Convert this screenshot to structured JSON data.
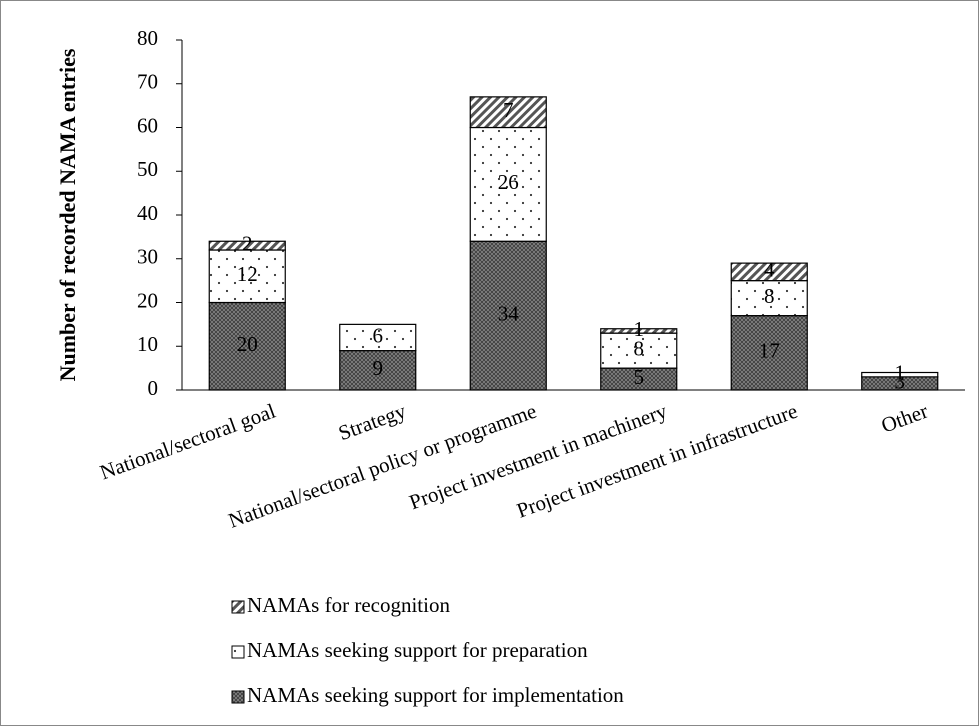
{
  "chart_data": {
    "type": "stacked_bar",
    "ylabel": "Number of recorded NAMA entries",
    "categories": [
      "National/sectoral goal",
      "Strategy",
      "National/sectoral policy or programme",
      "Project investment in machinery",
      "Project investment in infrastructure",
      "Other"
    ],
    "series": [
      {
        "name": "NAMAs seeking support for implementation",
        "color": "#8c8c8c",
        "values": [
          20,
          9,
          34,
          5,
          17,
          3
        ]
      },
      {
        "name": "NAMAs seeking support for preparation",
        "color": "#ffffff",
        "values": [
          12,
          6,
          26,
          8,
          8,
          1
        ]
      },
      {
        "name": "NAMAs for recognition",
        "color": "#ffffff",
        "values": [
          2,
          null,
          7,
          1,
          4,
          null
        ]
      }
    ],
    "ylim": [
      0,
      80
    ],
    "yticks": [
      0,
      10,
      20,
      30,
      40,
      50,
      60,
      70,
      80
    ]
  }
}
